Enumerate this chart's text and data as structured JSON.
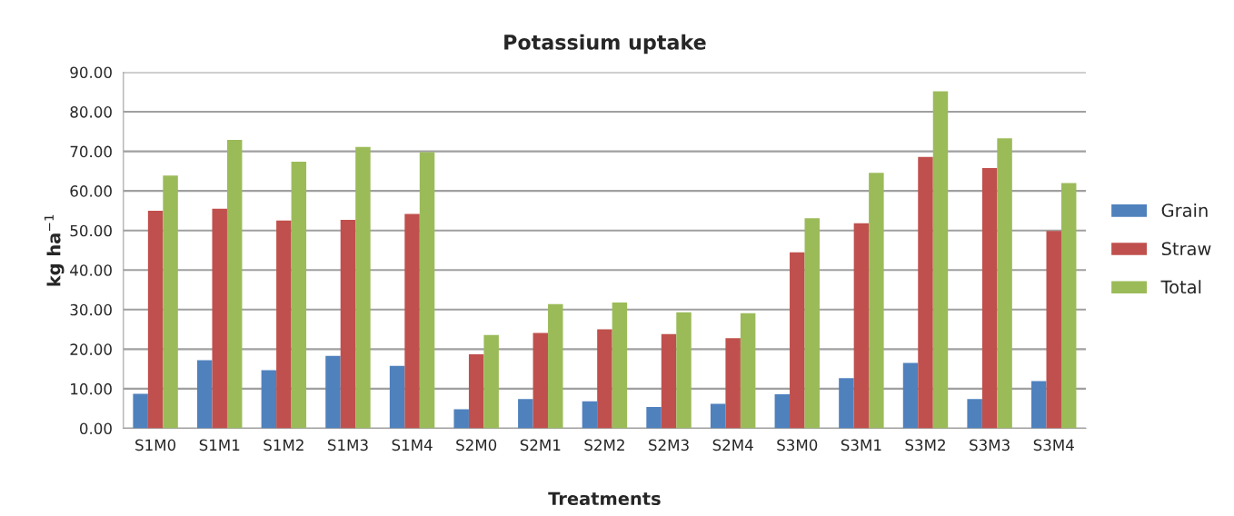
{
  "chart_data": {
    "type": "bar",
    "title": "Potassium uptake",
    "xlabel": "Treatments",
    "ylabel": "kg ha$^{−1}$",
    "categories": [
      "S1M0",
      "S1M1",
      "S1M2",
      "S1M3",
      "S1M4",
      "S2M0",
      "S2M1",
      "S2M2",
      "S2M3",
      "S2M4",
      "S3M0",
      "S3M1",
      "S3M2",
      "S3M3",
      "S3M4"
    ],
    "series": [
      {
        "name": "Grain",
        "color": "#4f81bd",
        "values": [
          8.7,
          17.2,
          14.7,
          18.3,
          15.8,
          4.8,
          7.4,
          6.8,
          5.4,
          6.2,
          8.6,
          12.7,
          16.5,
          7.4,
          11.9
        ]
      },
      {
        "name": "Straw",
        "color": "#c0504d",
        "values": [
          55.0,
          55.5,
          52.5,
          52.7,
          54.2,
          18.7,
          24.1,
          25.0,
          23.8,
          22.8,
          44.5,
          51.8,
          68.6,
          65.8,
          49.9
        ]
      },
      {
        "name": "Total",
        "color": "#9bbb59",
        "values": [
          63.9,
          72.9,
          67.4,
          71.1,
          69.8,
          23.6,
          31.4,
          31.8,
          29.3,
          29.1,
          53.1,
          64.6,
          85.2,
          73.3,
          62.0
        ]
      }
    ],
    "ylim": [
      0,
      90
    ],
    "yticks": [
      {
        "value": 0,
        "label": "0.00"
      },
      {
        "value": 10,
        "label": "10.00"
      },
      {
        "value": 20,
        "label": "20.00"
      },
      {
        "value": 30,
        "label": "30.00"
      },
      {
        "value": 40,
        "label": "40.00"
      },
      {
        "value": 50,
        "label": "50.00"
      },
      {
        "value": 60,
        "label": "60.00"
      },
      {
        "value": 70,
        "label": "70.00"
      },
      {
        "value": 80,
        "label": "80.00"
      },
      {
        "value": 90,
        "label": "90.00"
      }
    ],
    "grid": "y",
    "legend": "right"
  }
}
